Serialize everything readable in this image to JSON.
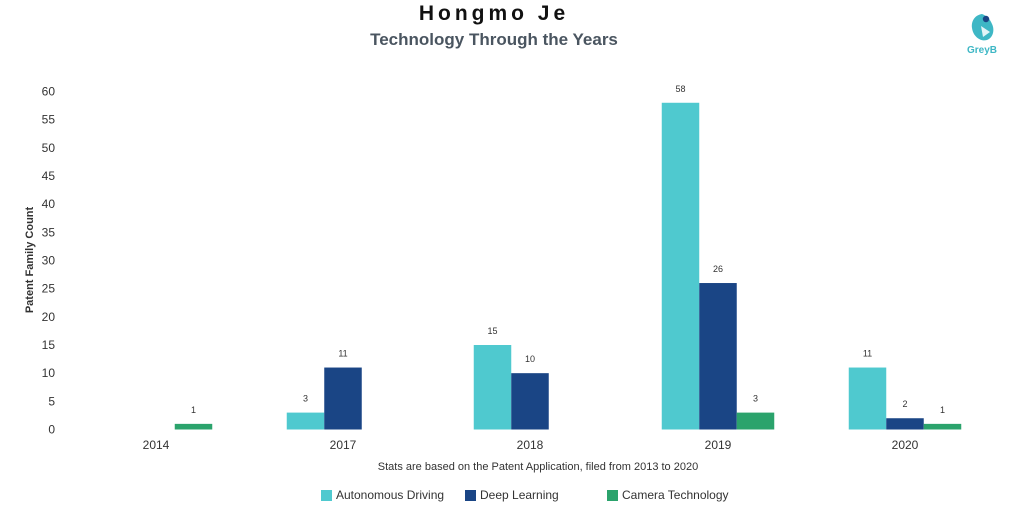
{
  "header": {
    "title": "Hongmo Je",
    "subtitle": "Technology Through the Years",
    "logo_text": "GreyB"
  },
  "footnote": "Stats are based on the Patent Application, filed from 2013 to 2020",
  "colors": {
    "autonomous_driving": "#4fc9cf",
    "deep_learning": "#1a4585",
    "camera_technology": "#2ba36c",
    "logo": "#3eb7c5"
  },
  "legend": [
    {
      "label": "Autonomous Driving"
    },
    {
      "label": "Deep Learning"
    },
    {
      "label": "Camera Technology"
    }
  ],
  "chart_data": {
    "type": "bar",
    "title": "Hongmo Je",
    "subtitle": "Technology Through the Years",
    "xlabel": "",
    "ylabel": "Patent Family Count",
    "categories": [
      "2014",
      "2017",
      "2018",
      "2019",
      "2020"
    ],
    "series": [
      {
        "name": "Autonomous Driving",
        "values": [
          null,
          3,
          15,
          58,
          11
        ]
      },
      {
        "name": "Deep Learning",
        "values": [
          null,
          11,
          10,
          26,
          2
        ]
      },
      {
        "name": "Camera Technology",
        "values": [
          1,
          null,
          null,
          3,
          1
        ]
      }
    ],
    "ylim": [
      0,
      60
    ],
    "yticks": [
      0,
      5,
      10,
      15,
      20,
      25,
      30,
      35,
      40,
      45,
      50,
      55,
      60
    ],
    "grid": false,
    "legend_position": "bottom"
  }
}
